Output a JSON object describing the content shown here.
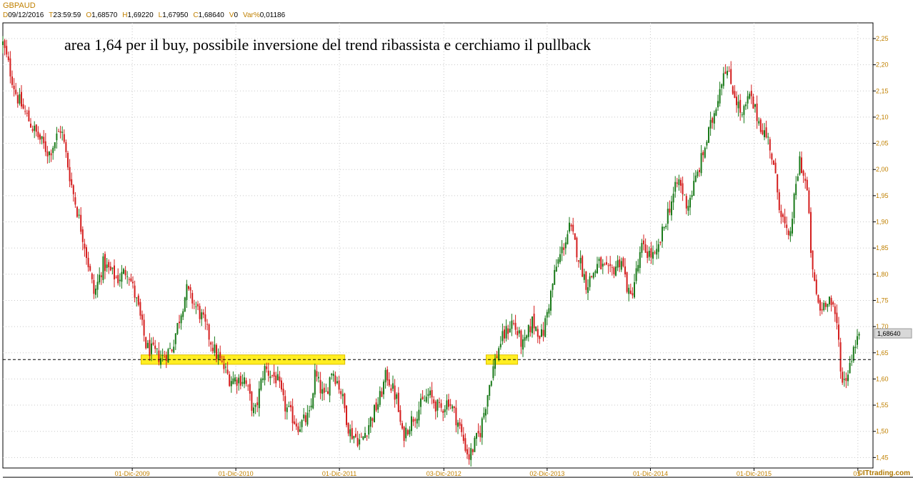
{
  "header": {
    "symbol": "GBPAUD",
    "ohlc": [
      {
        "key": "D",
        "value": "09/12/2016"
      },
      {
        "key": "T",
        "value": "23:59:59"
      },
      {
        "key": "O",
        "value": "1,68570"
      },
      {
        "key": "H",
        "value": "1,69220"
      },
      {
        "key": "L",
        "value": "1,67950"
      },
      {
        "key": "C",
        "value": "1,68640"
      },
      {
        "key": "V",
        "value": "0"
      },
      {
        "key": "Var%",
        "value": "0,01186"
      }
    ]
  },
  "watermark": "©ITtrading.com",
  "colors": {
    "up": "#1a7a1a",
    "down": "#d41e1e",
    "grid": "#c8c8c8",
    "zone": "#ffee22",
    "axis_text": "#c08000",
    "last_price_box": "#d8d8d8"
  },
  "chart_data": {
    "type": "candlestick",
    "title": "",
    "annotation": "area 1,64 per il buy, possibile inversione del trend ribassista e cerchiamo il pullback",
    "xlabel": "",
    "ylabel": "",
    "ylim": [
      1.43,
      2.28
    ],
    "yticks": [
      "1,45",
      "1,50",
      "1,55",
      "1,60",
      "1,65",
      "1,70",
      "1,75",
      "1,80",
      "1,85",
      "1,90",
      "1,95",
      "2,00",
      "2,05",
      "2,10",
      "2,15",
      "2,20",
      "2,25"
    ],
    "ytick_values": [
      1.45,
      1.5,
      1.55,
      1.6,
      1.65,
      1.7,
      1.75,
      1.8,
      1.85,
      1.9,
      1.95,
      2.0,
      2.05,
      2.1,
      2.15,
      2.2,
      2.25
    ],
    "xrange": [
      "2008-09-01",
      "2016-12-09"
    ],
    "xticks": [
      {
        "label": "01-Dic-2009",
        "date": "2009-12-01"
      },
      {
        "label": "01-Dic-2010",
        "date": "2010-12-01"
      },
      {
        "label": "01-Dic-2011",
        "date": "2011-12-01"
      },
      {
        "label": "03-Dic-2012",
        "date": "2012-12-03"
      },
      {
        "label": "02-Dic-2013",
        "date": "2013-12-02"
      },
      {
        "label": "01-Dic-2014",
        "date": "2014-12-01"
      },
      {
        "label": "01-Dic-2015",
        "date": "2015-12-01"
      },
      {
        "label": "01-",
        "date": "2016-12-01"
      }
    ],
    "price_path": [
      [
        "2008-09-01",
        2.24
      ],
      [
        "2008-10-20",
        2.14
      ],
      [
        "2008-12-15",
        2.08
      ],
      [
        "2009-02-10",
        2.03
      ],
      [
        "2009-03-25",
        2.08
      ],
      [
        "2009-05-01",
        1.97
      ],
      [
        "2009-06-15",
        1.86
      ],
      [
        "2009-07-20",
        1.76
      ],
      [
        "2009-08-20",
        1.82
      ],
      [
        "2009-10-10",
        1.79
      ],
      [
        "2009-11-15",
        1.81
      ],
      [
        "2009-12-20",
        1.74
      ],
      [
        "2010-01-20",
        1.66
      ],
      [
        "2010-03-15",
        1.64
      ],
      [
        "2010-04-20",
        1.66
      ],
      [
        "2010-06-10",
        1.77
      ],
      [
        "2010-08-01",
        1.72
      ],
      [
        "2010-09-20",
        1.65
      ],
      [
        "2010-11-10",
        1.6
      ],
      [
        "2011-01-01",
        1.6
      ],
      [
        "2011-02-05",
        1.53
      ],
      [
        "2011-03-10",
        1.62
      ],
      [
        "2011-04-25",
        1.6
      ],
      [
        "2011-05-20",
        1.55
      ],
      [
        "2011-07-10",
        1.51
      ],
      [
        "2011-08-20",
        1.53
      ],
      [
        "2011-09-05",
        1.61
      ],
      [
        "2011-10-10",
        1.56
      ],
      [
        "2011-11-05",
        1.62
      ],
      [
        "2011-12-05",
        1.58
      ],
      [
        "2012-01-05",
        1.5
      ],
      [
        "2012-02-15",
        1.48
      ],
      [
        "2012-04-20",
        1.56
      ],
      [
        "2012-05-15",
        1.61
      ],
      [
        "2012-06-20",
        1.56
      ],
      [
        "2012-07-10",
        1.49
      ],
      [
        "2012-08-20",
        1.53
      ],
      [
        "2012-10-10",
        1.57
      ],
      [
        "2012-11-20",
        1.54
      ],
      [
        "2012-12-20",
        1.56
      ],
      [
        "2013-01-20",
        1.52
      ],
      [
        "2013-03-01",
        1.45
      ],
      [
        "2013-04-10",
        1.5
      ],
      [
        "2013-05-20",
        1.61
      ],
      [
        "2013-06-20",
        1.67
      ],
      [
        "2013-08-01",
        1.71
      ],
      [
        "2013-09-10",
        1.66
      ],
      [
        "2013-10-10",
        1.71
      ],
      [
        "2013-11-15",
        1.68
      ],
      [
        "2014-01-01",
        1.81
      ],
      [
        "2014-02-20",
        1.89
      ],
      [
        "2014-03-20",
        1.84
      ],
      [
        "2014-04-20",
        1.78
      ],
      [
        "2014-06-01",
        1.82
      ],
      [
        "2014-07-10",
        1.8
      ],
      [
        "2014-08-20",
        1.83
      ],
      [
        "2014-09-20",
        1.75
      ],
      [
        "2014-11-01",
        1.85
      ],
      [
        "2014-12-20",
        1.83
      ],
      [
        "2015-02-01",
        1.92
      ],
      [
        "2015-03-10",
        1.98
      ],
      [
        "2015-04-10",
        1.93
      ],
      [
        "2015-05-15",
        1.99
      ],
      [
        "2015-07-10",
        2.1
      ],
      [
        "2015-08-20",
        2.2
      ],
      [
        "2015-09-20",
        2.15
      ],
      [
        "2015-10-20",
        2.1
      ],
      [
        "2015-11-15",
        2.14
      ],
      [
        "2015-12-20",
        2.09
      ],
      [
        "2016-01-25",
        2.05
      ],
      [
        "2016-03-01",
        1.93
      ],
      [
        "2016-04-01",
        1.86
      ],
      [
        "2016-05-10",
        2.02
      ],
      [
        "2016-06-05",
        1.96
      ],
      [
        "2016-06-24",
        1.8
      ],
      [
        "2016-07-20",
        1.73
      ],
      [
        "2016-08-20",
        1.76
      ],
      [
        "2016-09-20",
        1.7
      ],
      [
        "2016-10-07",
        1.59
      ],
      [
        "2016-10-25",
        1.61
      ],
      [
        "2016-11-20",
        1.67
      ],
      [
        "2016-12-09",
        1.6864
      ]
    ],
    "reference_line": {
      "value": 1.637,
      "style": "dashed"
    },
    "zones": [
      {
        "from": "2010-01-01",
        "to": "2011-12-20",
        "low": 1.628,
        "high": 1.646
      },
      {
        "from": "2013-05-01",
        "to": "2013-08-20",
        "low": 1.628,
        "high": 1.646
      }
    ],
    "last_price": {
      "value": 1.6864,
      "label": "1,68640"
    }
  }
}
